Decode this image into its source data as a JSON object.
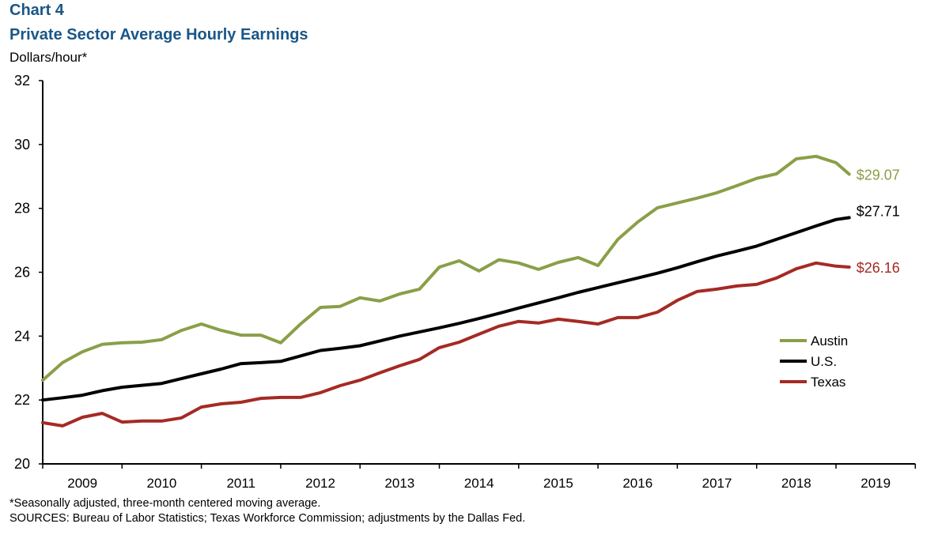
{
  "header": {
    "chart_label": "Chart 4",
    "title": "Private Sector Average Hourly Earnings",
    "unit": "Dollars/hour*"
  },
  "footnotes": [
    "*Seasonally adjusted, three-month centered moving average.",
    "SOURCES:  Bureau of Labor Statistics; Texas Workforce Commission; adjustments  by the Dallas Fed."
  ],
  "chart_data": {
    "type": "line",
    "title": "Private Sector Average Hourly Earnings",
    "ylabel": "Dollars/hour*",
    "ylim": [
      20,
      32
    ],
    "yticks": [
      "20",
      "22",
      "24",
      "26",
      "28",
      "30",
      "32"
    ],
    "xticks": [
      "2009",
      "2010",
      "2011",
      "2012",
      "2013",
      "2014",
      "2015",
      "2016",
      "2017",
      "2018",
      "2019"
    ],
    "xlim": [
      "2009-01",
      "2020-01"
    ],
    "grid": false,
    "legend_position": "right",
    "x": [
      "2009-01",
      "2009-04",
      "2009-07",
      "2009-10",
      "2010-01",
      "2010-04",
      "2010-07",
      "2010-10",
      "2011-01",
      "2011-04",
      "2011-07",
      "2011-10",
      "2012-01",
      "2012-04",
      "2012-07",
      "2012-10",
      "2013-01",
      "2013-04",
      "2013-07",
      "2013-10",
      "2014-01",
      "2014-04",
      "2014-07",
      "2014-10",
      "2015-01",
      "2015-04",
      "2015-07",
      "2015-10",
      "2016-01",
      "2016-04",
      "2016-07",
      "2016-10",
      "2017-01",
      "2017-04",
      "2017-07",
      "2017-10",
      "2018-01",
      "2018-04",
      "2018-07",
      "2018-10",
      "2019-01",
      "2019-03"
    ],
    "series": [
      {
        "name": "Austin",
        "color": "#8a9f48",
        "end_label": "$29.07",
        "values": [
          22.62,
          23.17,
          23.51,
          23.74,
          23.79,
          23.81,
          23.89,
          24.18,
          24.38,
          24.18,
          24.03,
          24.03,
          23.79,
          24.38,
          24.9,
          24.93,
          25.2,
          25.1,
          25.32,
          25.47,
          26.16,
          26.36,
          26.04,
          26.39,
          26.29,
          26.09,
          26.31,
          26.46,
          26.21,
          27.03,
          27.57,
          28.02,
          28.17,
          28.32,
          28.49,
          28.71,
          28.94,
          29.08,
          29.55,
          29.63,
          29.43,
          29.07
        ]
      },
      {
        "name": "U.S.",
        "color": "#000000",
        "end_label": "$27.71",
        "values": [
          22.0,
          22.07,
          22.15,
          22.29,
          22.4,
          22.46,
          22.52,
          22.67,
          22.82,
          22.97,
          23.14,
          23.17,
          23.21,
          23.38,
          23.55,
          23.62,
          23.7,
          23.85,
          24.0,
          24.13,
          24.26,
          24.4,
          24.55,
          24.71,
          24.88,
          25.04,
          25.2,
          25.37,
          25.52,
          25.67,
          25.82,
          25.97,
          26.14,
          26.33,
          26.51,
          26.66,
          26.82,
          27.03,
          27.24,
          27.45,
          27.65,
          27.71
        ]
      },
      {
        "name": "Texas",
        "color": "#a52a24",
        "end_label": "$26.16",
        "values": [
          21.29,
          21.19,
          21.46,
          21.58,
          21.31,
          21.34,
          21.34,
          21.44,
          21.78,
          21.88,
          21.93,
          22.05,
          22.08,
          22.08,
          22.23,
          22.45,
          22.62,
          22.85,
          23.07,
          23.27,
          23.64,
          23.81,
          24.06,
          24.31,
          24.46,
          24.41,
          24.53,
          24.46,
          24.38,
          24.58,
          24.58,
          24.75,
          25.12,
          25.4,
          25.47,
          25.57,
          25.62,
          25.82,
          26.11,
          26.29,
          26.19,
          26.16
        ]
      }
    ]
  }
}
